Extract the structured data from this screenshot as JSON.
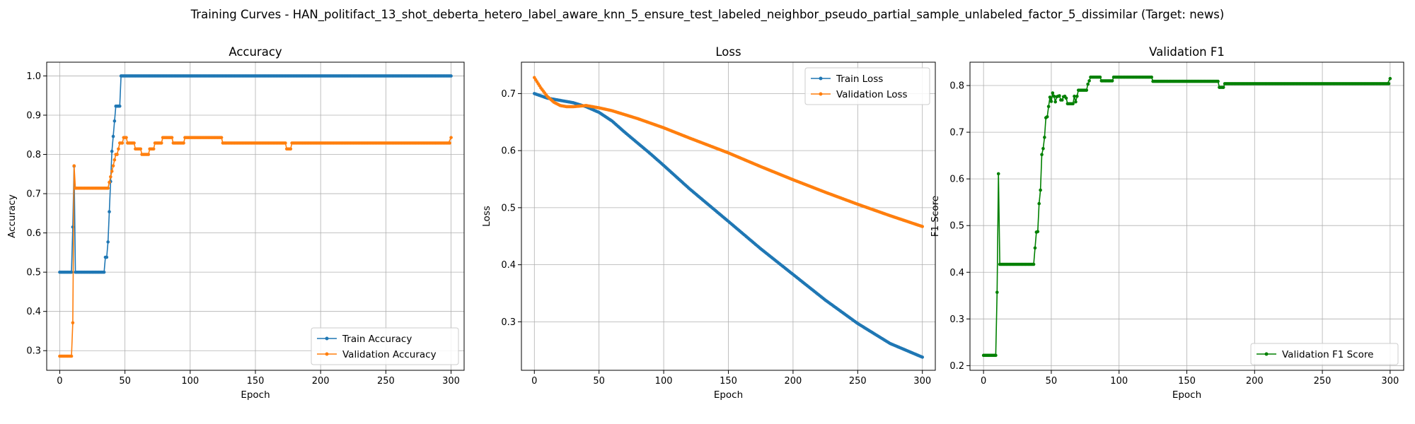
{
  "figure": {
    "suptitle": "Training Curves - HAN_politifact_13_shot_deberta_hetero_label_aware_knn_5_ensure_test_labeled_neighbor_pseudo_partial_sample_unlabeled_factor_5_dissimilar (Target: news)"
  },
  "chart_data": [
    {
      "type": "line",
      "title": "Accuracy",
      "xlabel": "Epoch",
      "ylabel": "Accuracy",
      "xlim": [
        -10,
        310
      ],
      "ylim": [
        0.25,
        1.035
      ],
      "xticks": [
        0,
        50,
        100,
        150,
        200,
        250,
        300
      ],
      "yticks": [
        0.3,
        0.4,
        0.5,
        0.6,
        0.7,
        0.8,
        0.9,
        1.0
      ],
      "tick_labels_x": [
        "0",
        "50",
        "100",
        "150",
        "200",
        "250",
        "300"
      ],
      "tick_labels_y": [
        "0.3",
        "0.4",
        "0.5",
        "0.6",
        "0.7",
        "0.8",
        "0.9",
        "1.0"
      ],
      "grid": true,
      "legend_position": "lower-right",
      "series": [
        {
          "name": "Train Accuracy",
          "color": "#1f77b4",
          "points": [
            [
              0,
              0.5
            ],
            [
              9,
              0.5
            ],
            [
              10,
              0.615
            ],
            [
              11,
              0.77
            ],
            [
              12,
              0.5
            ],
            [
              34,
              0.5
            ],
            [
              35,
              0.538
            ],
            [
              36,
              0.538
            ],
            [
              37,
              0.577
            ],
            [
              38,
              0.654
            ],
            [
              39,
              0.731
            ],
            [
              40,
              0.808
            ],
            [
              41,
              0.846
            ],
            [
              42,
              0.885
            ],
            [
              43,
              0.923
            ],
            [
              46,
              0.923
            ],
            [
              47,
              1.0
            ],
            [
              300,
              1.0
            ]
          ]
        },
        {
          "name": "Validation Accuracy",
          "color": "#ff7f0e",
          "points": [
            [
              0,
              0.286
            ],
            [
              9,
              0.286
            ],
            [
              10,
              0.371
            ],
            [
              11,
              0.771
            ],
            [
              12,
              0.714
            ],
            [
              37,
              0.714
            ],
            [
              38,
              0.729
            ],
            [
              39,
              0.743
            ],
            [
              40,
              0.757
            ],
            [
              41,
              0.771
            ],
            [
              42,
              0.786
            ],
            [
              43,
              0.8
            ],
            [
              44,
              0.8
            ],
            [
              45,
              0.814
            ],
            [
              46,
              0.829
            ],
            [
              48,
              0.829
            ],
            [
              49,
              0.843
            ],
            [
              51,
              0.843
            ],
            [
              52,
              0.829
            ],
            [
              57,
              0.829
            ],
            [
              58,
              0.814
            ],
            [
              62,
              0.814
            ],
            [
              63,
              0.8
            ],
            [
              68,
              0.8
            ],
            [
              69,
              0.814
            ],
            [
              72,
              0.814
            ],
            [
              73,
              0.829
            ],
            [
              78,
              0.829
            ],
            [
              79,
              0.843
            ],
            [
              86,
              0.843
            ],
            [
              87,
              0.829
            ],
            [
              95,
              0.829
            ],
            [
              96,
              0.843
            ],
            [
              124,
              0.843
            ],
            [
              125,
              0.829
            ],
            [
              173,
              0.829
            ],
            [
              174,
              0.814
            ],
            [
              177,
              0.814
            ],
            [
              178,
              0.829
            ],
            [
              298,
              0.829
            ],
            [
              300,
              0.843
            ]
          ]
        }
      ]
    },
    {
      "type": "line",
      "title": "Loss",
      "xlabel": "Epoch",
      "ylabel": "Loss",
      "xlim": [
        -10,
        310
      ],
      "ylim": [
        0.215,
        0.755
      ],
      "xticks": [
        0,
        50,
        100,
        150,
        200,
        250,
        300
      ],
      "yticks": [
        0.3,
        0.4,
        0.5,
        0.6,
        0.7
      ],
      "tick_labels_x": [
        "0",
        "50",
        "100",
        "150",
        "200",
        "250",
        "300"
      ],
      "tick_labels_y": [
        "0.3",
        "0.4",
        "0.5",
        "0.6",
        "0.7"
      ],
      "grid": true,
      "legend_position": "upper-right",
      "series": [
        {
          "name": "Train Loss",
          "color": "#1f77b4",
          "points": [
            [
              0,
              0.7
            ],
            [
              10,
              0.692
            ],
            [
              20,
              0.688
            ],
            [
              30,
              0.684
            ],
            [
              40,
              0.677
            ],
            [
              50,
              0.667
            ],
            [
              60,
              0.652
            ],
            [
              70,
              0.632
            ],
            [
              80,
              0.613
            ],
            [
              90,
              0.594
            ],
            [
              100,
              0.574
            ],
            [
              120,
              0.533
            ],
            [
              150,
              0.476
            ],
            [
              175,
              0.428
            ],
            [
              200,
              0.383
            ],
            [
              225,
              0.338
            ],
            [
              250,
              0.297
            ],
            [
              275,
              0.262
            ],
            [
              300,
              0.238
            ]
          ]
        },
        {
          "name": "Validation Loss",
          "color": "#ff7f0e",
          "points": [
            [
              0,
              0.728
            ],
            [
              5,
              0.71
            ],
            [
              10,
              0.695
            ],
            [
              15,
              0.685
            ],
            [
              20,
              0.679
            ],
            [
              25,
              0.677
            ],
            [
              30,
              0.677
            ],
            [
              40,
              0.679
            ],
            [
              50,
              0.675
            ],
            [
              60,
              0.67
            ],
            [
              70,
              0.663
            ],
            [
              80,
              0.656
            ],
            [
              90,
              0.648
            ],
            [
              100,
              0.64
            ],
            [
              120,
              0.622
            ],
            [
              150,
              0.596
            ],
            [
              175,
              0.572
            ],
            [
              200,
              0.549
            ],
            [
              225,
              0.527
            ],
            [
              250,
              0.506
            ],
            [
              275,
              0.486
            ],
            [
              300,
              0.467
            ]
          ]
        }
      ]
    },
    {
      "type": "line",
      "title": "Validation F1",
      "xlabel": "Epoch",
      "ylabel": "F1 Score",
      "xlim": [
        -10,
        310
      ],
      "ylim": [
        0.19,
        0.85
      ],
      "xticks": [
        0,
        50,
        100,
        150,
        200,
        250,
        300
      ],
      "yticks": [
        0.2,
        0.3,
        0.4,
        0.5,
        0.6,
        0.7,
        0.8
      ],
      "tick_labels_x": [
        "0",
        "50",
        "100",
        "150",
        "200",
        "250",
        "300"
      ],
      "tick_labels_y": [
        "0.2",
        "0.3",
        "0.4",
        "0.5",
        "0.6",
        "0.7",
        "0.8"
      ],
      "grid": true,
      "legend_position": "lower-right",
      "series": [
        {
          "name": "Validation F1 Score",
          "color": "#008000",
          "points": [
            [
              0,
              0.222
            ],
            [
              9,
              0.222
            ],
            [
              10,
              0.357
            ],
            [
              11,
              0.611
            ],
            [
              12,
              0.417
            ],
            [
              37,
              0.417
            ],
            [
              38,
              0.452
            ],
            [
              39,
              0.486
            ],
            [
              40,
              0.487
            ],
            [
              41,
              0.547
            ],
            [
              42,
              0.576
            ],
            [
              43,
              0.652
            ],
            [
              44,
              0.665
            ],
            [
              45,
              0.689
            ],
            [
              46,
              0.731
            ],
            [
              47,
              0.733
            ],
            [
              48,
              0.755
            ],
            [
              49,
              0.775
            ],
            [
              50,
              0.766
            ],
            [
              51,
              0.784
            ],
            [
              52,
              0.777
            ],
            [
              53,
              0.765
            ],
            [
              54,
              0.776
            ],
            [
              55,
              0.777
            ],
            [
              56,
              0.778
            ],
            [
              57,
              0.769
            ],
            [
              58,
              0.769
            ],
            [
              59,
              0.776
            ],
            [
              60,
              0.777
            ],
            [
              61,
              0.773
            ],
            [
              62,
              0.761
            ],
            [
              66,
              0.761
            ],
            [
              67,
              0.777
            ],
            [
              68,
              0.765
            ],
            [
              69,
              0.777
            ],
            [
              70,
              0.79
            ],
            [
              76,
              0.79
            ],
            [
              77,
              0.803
            ],
            [
              78,
              0.81
            ],
            [
              79,
              0.818
            ],
            [
              86,
              0.818
            ],
            [
              87,
              0.81
            ],
            [
              95,
              0.81
            ],
            [
              96,
              0.818
            ],
            [
              124,
              0.818
            ],
            [
              125,
              0.809
            ],
            [
              173,
              0.809
            ],
            [
              174,
              0.796
            ],
            [
              177,
              0.796
            ],
            [
              178,
              0.804
            ],
            [
              298,
              0.804
            ],
            [
              300,
              0.815
            ]
          ]
        }
      ]
    }
  ]
}
